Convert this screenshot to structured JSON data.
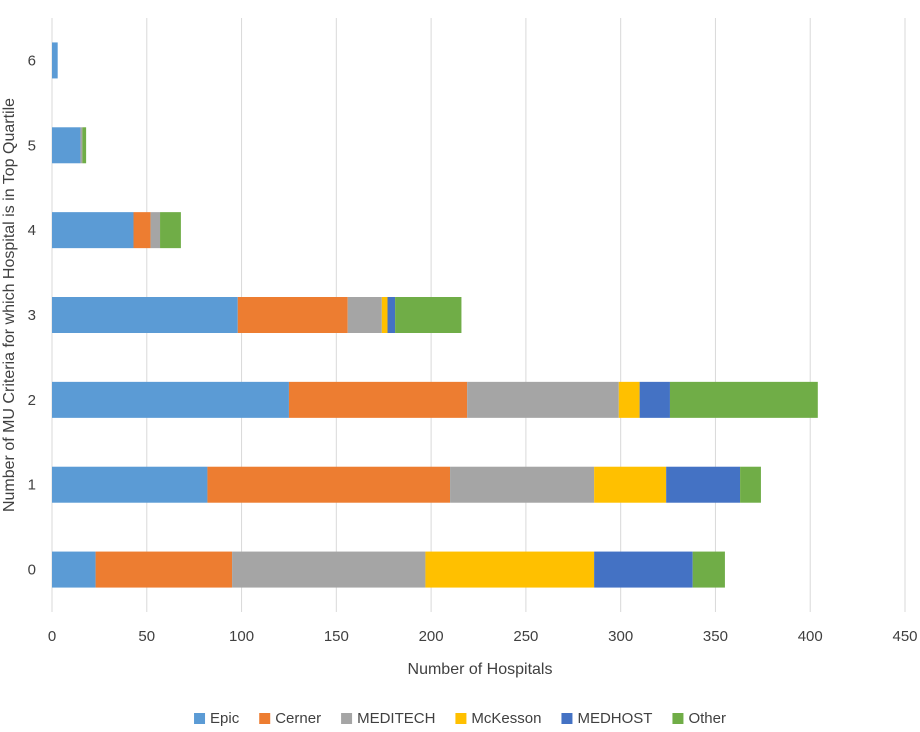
{
  "chart_data": {
    "type": "bar",
    "orientation": "horizontal",
    "stacked": true,
    "title": "",
    "xlabel": "Number of Hospitals",
    "ylabel": "Number of MU Criteria for which Hospital is in Top Quartile",
    "categories": [
      "0",
      "1",
      "2",
      "3",
      "4",
      "5",
      "6"
    ],
    "xlim": [
      0,
      450
    ],
    "xticks": [
      "0",
      "50",
      "100",
      "150",
      "200",
      "250",
      "300",
      "350",
      "400",
      "450"
    ],
    "grid": true,
    "legend_position": "bottom",
    "series": [
      {
        "name": "Epic",
        "color": "#5B9BD5",
        "values": [
          23,
          82,
          125,
          98,
          43,
          15,
          3
        ]
      },
      {
        "name": "Cerner",
        "color": "#ED7D31",
        "values": [
          72,
          128,
          94,
          58,
          9,
          0,
          0
        ]
      },
      {
        "name": "MEDITECH",
        "color": "#A5A5A5",
        "values": [
          102,
          76,
          80,
          18,
          5,
          1,
          0
        ]
      },
      {
        "name": "McKesson",
        "color": "#FFC000",
        "values": [
          89,
          38,
          11,
          3,
          0,
          0,
          0
        ]
      },
      {
        "name": "MEDHOST",
        "color": "#4472C4",
        "values": [
          52,
          39,
          16,
          4,
          0,
          0,
          0
        ]
      },
      {
        "name": "Other",
        "color": "#70AD47",
        "values": [
          17,
          11,
          78,
          35,
          11,
          2,
          0
        ]
      }
    ]
  }
}
